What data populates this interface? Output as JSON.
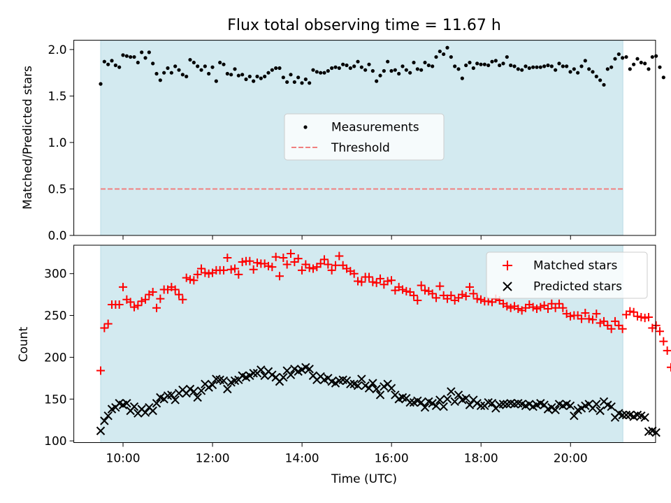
{
  "figure": {
    "title": "Flux total observing time = 11.67 h"
  },
  "colors": {
    "observing_band": "#d3eaf0",
    "measurement": "#000000",
    "threshold": "#f08080",
    "matched": "#ff0000",
    "predicted": "#000000"
  },
  "chart_data": [
    {
      "type": "scatter",
      "panel": "top",
      "ylabel": "Matched/Predicted stars",
      "xlim": [
        8.9,
        21.9
      ],
      "ylim": [
        0.0,
        2.1
      ],
      "yticks": [
        0.0,
        0.5,
        1.0,
        1.5,
        2.0
      ],
      "ytick_labels": [
        "0.0",
        "0.5",
        "1.0",
        "1.5",
        "2.0"
      ],
      "shaded_span": [
        9.5,
        21.17
      ],
      "threshold": 0.5,
      "legend": {
        "placement": "center",
        "entries": [
          "Measurements",
          "Threshold"
        ]
      },
      "series": [
        {
          "name": "Measurements",
          "marker": "dot",
          "x_start": 9.5,
          "x_step": 0.0833,
          "values": [
            1.63,
            1.87,
            1.84,
            1.88,
            1.83,
            1.81,
            1.94,
            1.93,
            1.92,
            1.92,
            1.86,
            1.97,
            1.91,
            1.97,
            1.85,
            1.74,
            1.67,
            1.75,
            1.8,
            1.75,
            1.82,
            1.78,
            1.73,
            1.71,
            1.89,
            1.86,
            1.82,
            1.78,
            1.82,
            1.74,
            1.81,
            1.66,
            1.86,
            1.84,
            1.74,
            1.73,
            1.79,
            1.72,
            1.73,
            1.68,
            1.71,
            1.66,
            1.71,
            1.69,
            1.71,
            1.75,
            1.78,
            1.8,
            1.8,
            1.7,
            1.65,
            1.73,
            1.65,
            1.7,
            1.64,
            1.68,
            1.64,
            1.78,
            1.76,
            1.75,
            1.75,
            1.77,
            1.8,
            1.81,
            1.8,
            1.84,
            1.83,
            1.8,
            1.82,
            1.87,
            1.81,
            1.78,
            1.84,
            1.77,
            1.66,
            1.72,
            1.77,
            1.87,
            1.77,
            1.78,
            1.74,
            1.82,
            1.78,
            1.75,
            1.86,
            1.79,
            1.78,
            1.86,
            1.83,
            1.82,
            1.92,
            1.98,
            1.95,
            2.02,
            1.92,
            1.82,
            1.79,
            1.69,
            1.83,
            1.86,
            1.8,
            1.85,
            1.84,
            1.84,
            1.83,
            1.87,
            1.88,
            1.83,
            1.85,
            1.92,
            1.83,
            1.82,
            1.79,
            1.78,
            1.82,
            1.8,
            1.81,
            1.81,
            1.81,
            1.82,
            1.83,
            1.82,
            1.78,
            1.85,
            1.82,
            1.82,
            1.76,
            1.79,
            1.75,
            1.82,
            1.88,
            1.79,
            1.76,
            1.71,
            1.67,
            1.62,
            1.79,
            1.81,
            1.9,
            1.95,
            1.91,
            1.92,
            1.79,
            1.84,
            1.9,
            1.86,
            1.85,
            1.79,
            1.92,
            1.93,
            1.81,
            1.7
          ]
        }
      ]
    },
    {
      "type": "scatter",
      "panel": "bottom",
      "xlabel": "Time (UTC)",
      "ylabel": "Count",
      "xlim": [
        8.9,
        21.9
      ],
      "ylim": [
        98,
        334
      ],
      "xticks": [
        10,
        12,
        14,
        16,
        18,
        20
      ],
      "xtick_labels": [
        "10:00",
        "12:00",
        "14:00",
        "16:00",
        "18:00",
        "20:00"
      ],
      "yticks": [
        100,
        150,
        200,
        250,
        300
      ],
      "ytick_labels": [
        "100",
        "150",
        "200",
        "250",
        "300"
      ],
      "shaded_span": [
        9.5,
        21.17
      ],
      "legend": {
        "placement": "upper right",
        "entries": [
          "Matched stars",
          "Predicted stars"
        ]
      },
      "series": [
        {
          "name": "Matched stars",
          "marker": "plus",
          "x_start": 9.5,
          "x_step": 0.0833,
          "values": [
            184,
            235,
            240,
            263,
            263,
            263,
            284,
            269,
            266,
            260,
            262,
            267,
            269,
            275,
            278,
            259,
            270,
            281,
            281,
            284,
            281,
            275,
            269,
            295,
            293,
            292,
            299,
            306,
            301,
            300,
            301,
            304,
            304,
            304,
            319,
            305,
            306,
            299,
            314,
            315,
            315,
            305,
            313,
            312,
            312,
            309,
            308,
            320,
            297,
            319,
            311,
            324,
            314,
            318,
            304,
            311,
            307,
            306,
            308,
            312,
            317,
            311,
            304,
            310,
            321,
            310,
            306,
            303,
            300,
            291,
            290,
            296,
            296,
            290,
            289,
            294,
            287,
            291,
            292,
            280,
            284,
            281,
            279,
            278,
            274,
            268,
            286,
            280,
            279,
            276,
            271,
            285,
            274,
            270,
            274,
            268,
            271,
            275,
            273,
            284,
            276,
            270,
            269,
            267,
            267,
            266,
            270,
            268,
            264,
            261,
            259,
            261,
            258,
            256,
            259,
            263,
            260,
            258,
            260,
            262,
            258,
            264,
            259,
            264,
            259,
            252,
            249,
            250,
            250,
            246,
            253,
            246,
            245,
            252,
            241,
            243,
            238,
            234,
            243,
            238,
            234,
            251,
            255,
            254,
            249,
            248,
            247,
            248,
            235,
            238,
            231,
            219,
            208,
            188
          ]
        },
        {
          "name": "Predicted stars",
          "marker": "x",
          "x_start": 9.5,
          "x_step": 0.0833,
          "values": [
            112,
            124,
            130,
            138,
            140,
            145,
            143,
            145,
            136,
            141,
            133,
            138,
            134,
            140,
            136,
            145,
            152,
            150,
            154,
            155,
            149,
            157,
            161,
            157,
            162,
            159,
            152,
            160,
            168,
            164,
            167,
            174,
            173,
            172,
            162,
            170,
            172,
            173,
            178,
            176,
            178,
            181,
            181,
            185,
            178,
            183,
            179,
            176,
            171,
            176,
            184,
            179,
            186,
            183,
            185,
            188,
            186,
            178,
            173,
            177,
            173,
            175,
            171,
            169,
            172,
            173,
            172,
            168,
            168,
            166,
            174,
            166,
            163,
            169,
            162,
            155,
            165,
            168,
            163,
            155,
            150,
            152,
            151,
            146,
            146,
            148,
            146,
            140,
            147,
            145,
            142,
            149,
            141,
            150,
            159,
            147,
            155,
            149,
            151,
            143,
            149,
            145,
            142,
            142,
            146,
            145,
            139,
            143,
            144,
            144,
            145,
            144,
            145,
            144,
            142,
            144,
            141,
            143,
            145,
            143,
            138,
            140,
            137,
            144,
            142,
            144,
            142,
            130,
            137,
            139,
            142,
            144,
            139,
            144,
            136,
            147,
            143,
            141,
            128,
            133,
            131,
            131,
            131,
            129,
            131,
            130,
            128,
            111,
            112,
            110
          ]
        }
      ]
    }
  ]
}
